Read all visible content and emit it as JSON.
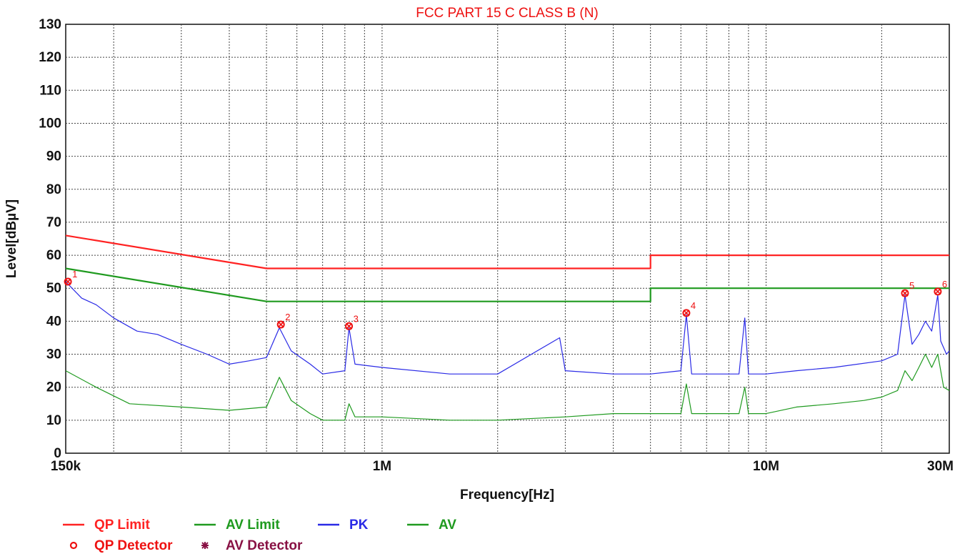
{
  "chart_data": {
    "type": "line",
    "title": "FCC PART 15 C CLASS B (N)",
    "xlabel": "Frequency[Hz]",
    "ylabel": "Level[dBµV]",
    "x_scale": "log",
    "xlim": [
      150000,
      30000000
    ],
    "ylim": [
      0,
      130
    ],
    "y_ticks": [
      0,
      10,
      20,
      30,
      40,
      50,
      60,
      70,
      80,
      90,
      100,
      110,
      120,
      130
    ],
    "x_tick_labels": [
      {
        "value": 150000,
        "label": "150k"
      },
      {
        "value": 1000000,
        "label": "1M"
      },
      {
        "value": 10000000,
        "label": "10M"
      },
      {
        "value": 30000000,
        "label": "30M"
      }
    ],
    "grid": true,
    "colors": {
      "qp": "#ff2222",
      "av_limit": "#1f9a1f",
      "pk": "#2a2ae6",
      "av": "#1f9a1f",
      "marker": "#ee1111"
    },
    "series": [
      {
        "name": "QP Limit",
        "points": [
          [
            150000,
            66
          ],
          [
            500000,
            56
          ],
          [
            5000000,
            56
          ],
          [
            5000000,
            60
          ],
          [
            30000000,
            60
          ]
        ]
      },
      {
        "name": "AV Limit",
        "points": [
          [
            150000,
            56
          ],
          [
            500000,
            46
          ],
          [
            5000000,
            46
          ],
          [
            5000000,
            50
          ],
          [
            30000000,
            50
          ]
        ]
      },
      {
        "name": "PK",
        "points": [
          [
            150000,
            52
          ],
          [
            165000,
            47
          ],
          [
            180000,
            45
          ],
          [
            200000,
            41
          ],
          [
            230000,
            37
          ],
          [
            260000,
            36
          ],
          [
            300000,
            33
          ],
          [
            350000,
            30
          ],
          [
            400000,
            27
          ],
          [
            450000,
            28
          ],
          [
            500000,
            29
          ],
          [
            540000,
            38
          ],
          [
            580000,
            31
          ],
          [
            650000,
            27
          ],
          [
            700000,
            24
          ],
          [
            800000,
            25
          ],
          [
            820000,
            38
          ],
          [
            850000,
            27
          ],
          [
            1000000,
            26
          ],
          [
            1500000,
            24
          ],
          [
            2000000,
            24
          ],
          [
            2900000,
            35
          ],
          [
            3000000,
            25
          ],
          [
            4000000,
            24
          ],
          [
            5000000,
            24
          ],
          [
            6000000,
            25
          ],
          [
            6200000,
            42
          ],
          [
            6400000,
            24
          ],
          [
            8500000,
            24
          ],
          [
            8800000,
            41
          ],
          [
            9000000,
            24
          ],
          [
            10000000,
            24
          ],
          [
            12000000,
            25
          ],
          [
            15000000,
            26
          ],
          [
            20000000,
            28
          ],
          [
            22000000,
            30
          ],
          [
            23000000,
            48
          ],
          [
            24000000,
            33
          ],
          [
            25000000,
            36
          ],
          [
            26000000,
            40
          ],
          [
            27000000,
            37
          ],
          [
            28000000,
            48
          ],
          [
            28500000,
            34
          ],
          [
            29500000,
            30
          ],
          [
            30000000,
            31
          ]
        ]
      },
      {
        "name": "AV",
        "points": [
          [
            150000,
            25
          ],
          [
            180000,
            20
          ],
          [
            220000,
            15
          ],
          [
            300000,
            14
          ],
          [
            400000,
            13
          ],
          [
            500000,
            14
          ],
          [
            540000,
            23
          ],
          [
            580000,
            16
          ],
          [
            650000,
            12
          ],
          [
            700000,
            10
          ],
          [
            800000,
            10
          ],
          [
            820000,
            15
          ],
          [
            850000,
            11
          ],
          [
            1000000,
            11
          ],
          [
            1500000,
            10
          ],
          [
            2000000,
            10
          ],
          [
            3000000,
            11
          ],
          [
            4000000,
            12
          ],
          [
            5000000,
            12
          ],
          [
            6000000,
            12
          ],
          [
            6200000,
            21
          ],
          [
            6400000,
            12
          ],
          [
            8500000,
            12
          ],
          [
            8800000,
            20
          ],
          [
            9000000,
            12
          ],
          [
            10000000,
            12
          ],
          [
            12000000,
            14
          ],
          [
            15000000,
            15
          ],
          [
            18000000,
            16
          ],
          [
            20000000,
            17
          ],
          [
            22000000,
            19
          ],
          [
            23000000,
            25
          ],
          [
            24000000,
            22
          ],
          [
            25000000,
            26
          ],
          [
            26000000,
            30
          ],
          [
            27000000,
            26
          ],
          [
            28000000,
            30
          ],
          [
            29000000,
            20
          ],
          [
            30000000,
            19
          ]
        ]
      }
    ],
    "markers": [
      {
        "label": "1",
        "freq": 152000,
        "level": 52
      },
      {
        "label": "2",
        "freq": 545000,
        "level": 39
      },
      {
        "label": "3",
        "freq": 820000,
        "level": 38.5
      },
      {
        "label": "4",
        "freq": 6200000,
        "level": 42.5
      },
      {
        "label": "5",
        "freq": 23000000,
        "level": 48.5
      },
      {
        "label": "6",
        "freq": 28000000,
        "level": 49
      }
    ],
    "legend": [
      {
        "label": "QP Limit",
        "symbol": "line",
        "color": "#ff2222"
      },
      {
        "label": "AV Limit",
        "symbol": "line",
        "color": "#1f9a1f"
      },
      {
        "label": "PK",
        "symbol": "line",
        "color": "#2a2ae6"
      },
      {
        "label": "AV",
        "symbol": "line",
        "color": "#1f9a1f"
      },
      {
        "label": "QP Detector",
        "symbol": "o",
        "color": "#ee1111"
      },
      {
        "label": "AV Detector",
        "symbol": "*",
        "color": "#881144"
      }
    ],
    "legend_position": "bottom-left"
  }
}
